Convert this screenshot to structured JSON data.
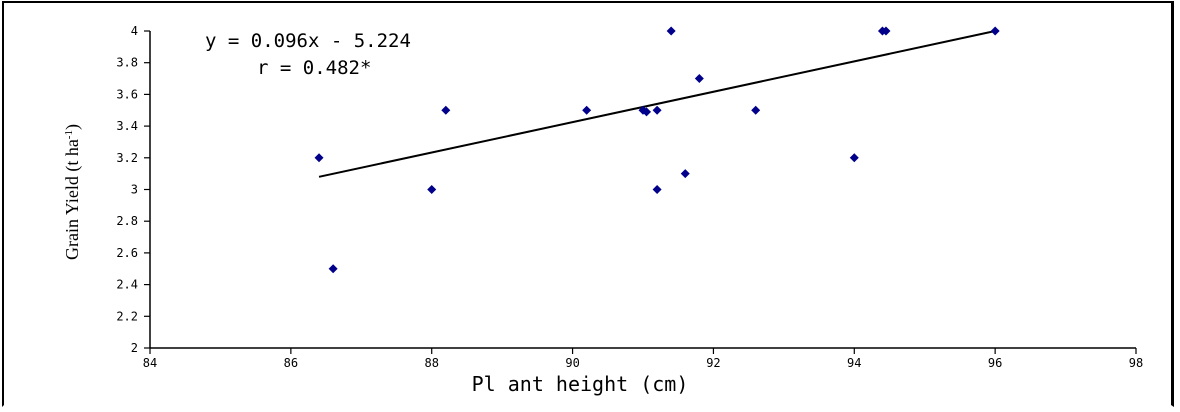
{
  "chart_data": {
    "type": "scatter",
    "xlabel": "Pl ant height (cm)",
    "ylabel_main": "Grain Yield (t ha",
    "ylabel_sup": "-1",
    "ylabel_close": ")",
    "xlim": [
      84,
      98
    ],
    "ylim": [
      2,
      4
    ],
    "xticks": [
      84,
      86,
      88,
      90,
      92,
      94,
      96,
      98
    ],
    "xtick_labels": [
      "84",
      "86",
      "88",
      "90",
      "92",
      "94",
      "96",
      "98"
    ],
    "yticks": [
      2,
      2.2,
      2.4,
      2.6,
      2.8,
      3,
      3.2,
      3.4,
      3.6,
      3.8,
      4
    ],
    "ytick_labels": [
      "2",
      "2.2",
      "2.4",
      "2.6",
      "2.8",
      "3",
      "3.2",
      "3.4",
      "3.6",
      "3.8",
      "4"
    ],
    "grid": false,
    "legend": "none",
    "marker_color": "#00008b",
    "trendline_color": "#000000",
    "points": [
      {
        "x": 86.4,
        "y": 3.2
      },
      {
        "x": 86.6,
        "y": 2.5
      },
      {
        "x": 88.0,
        "y": 3.0
      },
      {
        "x": 88.2,
        "y": 3.5
      },
      {
        "x": 90.2,
        "y": 3.5
      },
      {
        "x": 91.0,
        "y": 3.5
      },
      {
        "x": 91.05,
        "y": 3.49
      },
      {
        "x": 91.2,
        "y": 3.5
      },
      {
        "x": 91.2,
        "y": 3.0
      },
      {
        "x": 91.4,
        "y": 4.0
      },
      {
        "x": 91.6,
        "y": 3.1
      },
      {
        "x": 91.8,
        "y": 3.7
      },
      {
        "x": 92.6,
        "y": 3.5
      },
      {
        "x": 94.0,
        "y": 3.2
      },
      {
        "x": 94.4,
        "y": 4.0
      },
      {
        "x": 94.45,
        "y": 4.0
      },
      {
        "x": 96.0,
        "y": 4.0
      }
    ],
    "trendline": {
      "x": [
        86.4,
        96.0
      ],
      "y": [
        3.08,
        4.0
      ]
    },
    "annotations": [
      "y = 0.096x - 5.224",
      "r = 0.482*"
    ]
  }
}
